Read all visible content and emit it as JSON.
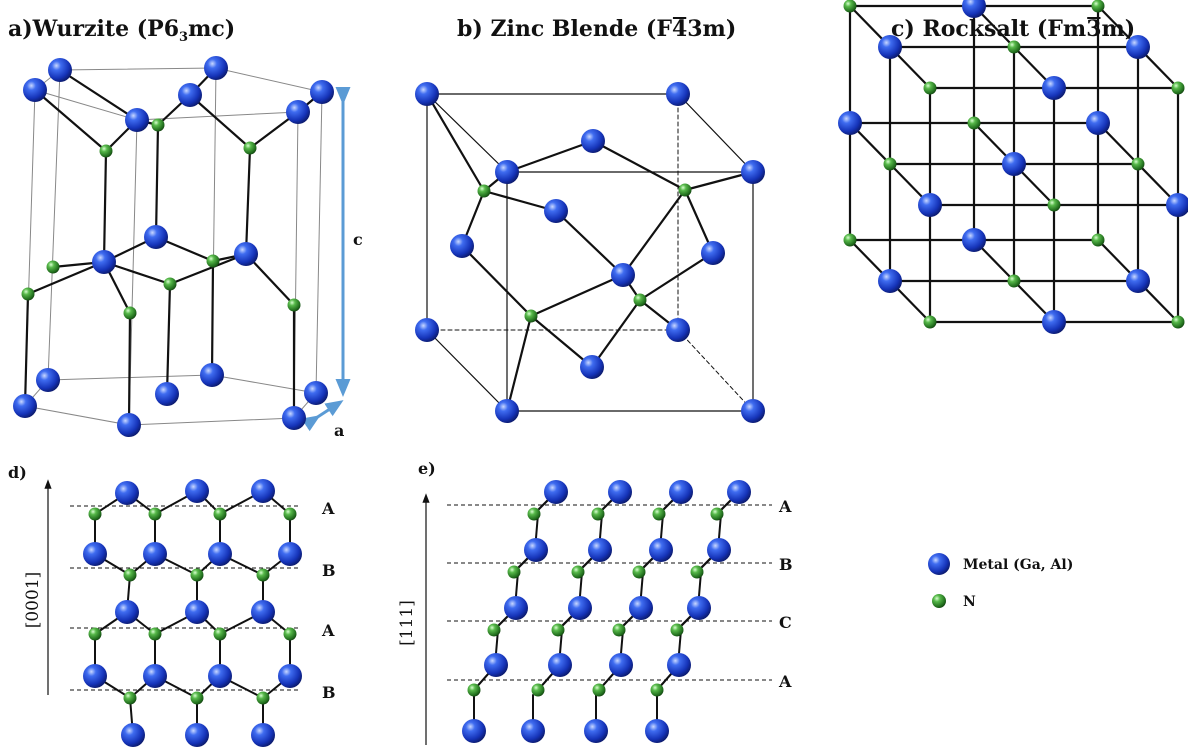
{
  "titles": {
    "a": {
      "prefix": "a)Wurzite (",
      "main": "P6",
      "sub": "3",
      "suffix": "mc",
      "close": ")"
    },
    "b": {
      "prefix": "b) Zinc Blende (",
      "main": "F",
      "bar": "4",
      "after": "3m",
      "close": ")"
    },
    "c": {
      "prefix": "c) Rocksalt (",
      "main": "Fm",
      "bar": "3",
      "after": "m",
      "close": ")"
    }
  },
  "wurtzite": {
    "c_label": "c",
    "a_label": "a"
  },
  "panel_d": {
    "label": "d)",
    "axis": "[0001]",
    "layers": [
      "A",
      "B",
      "A",
      "B"
    ]
  },
  "panel_e": {
    "label": "e)",
    "axis": "[111]",
    "layers": [
      "A",
      "B",
      "C",
      "A"
    ]
  },
  "legend": [
    {
      "name": "Metal (Ga, Al)",
      "color": "#1f3fd0"
    },
    {
      "name": "N",
      "color": "#3aa63a"
    }
  ],
  "colors": {
    "metal": "#1f3fd0",
    "nitrogen": "#3aa63a",
    "axis_arrow": "#5b9bd5"
  }
}
